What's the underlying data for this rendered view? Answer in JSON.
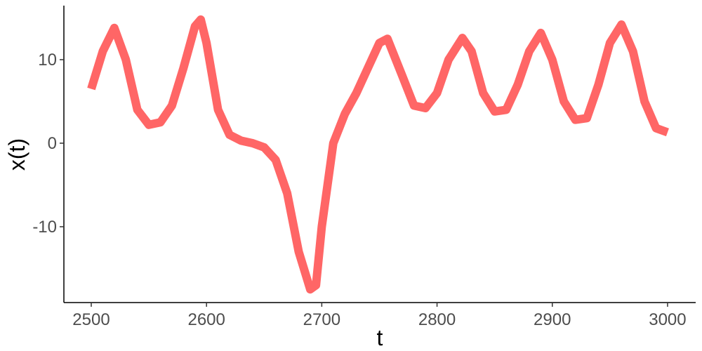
{
  "chart_data": {
    "type": "line",
    "x_label": "t",
    "y_label": "x(t)",
    "x": [
      2500,
      2510,
      2520,
      2530,
      2540,
      2550,
      2560,
      2570,
      2580,
      2590,
      2595,
      2600,
      2610,
      2620,
      2630,
      2640,
      2650,
      2660,
      2670,
      2680,
      2690,
      2695,
      2700,
      2710,
      2720,
      2730,
      2740,
      2750,
      2757,
      2770,
      2780,
      2790,
      2800,
      2810,
      2822,
      2830,
      2840,
      2850,
      2860,
      2870,
      2880,
      2890,
      2900,
      2910,
      2920,
      2930,
      2940,
      2950,
      2960,
      2970,
      2980,
      2990,
      3000
    ],
    "values": [
      6.5,
      11,
      13.8,
      10,
      4,
      2.2,
      2.5,
      4.5,
      9,
      14,
      14.8,
      12,
      4,
      1,
      0.3,
      0,
      -0.5,
      -2,
      -6,
      -13,
      -17.5,
      -17,
      -10,
      0,
      3.5,
      6,
      9,
      12,
      12.5,
      8,
      4.5,
      4.2,
      6,
      10,
      12.6,
      11,
      6,
      3.8,
      4,
      7,
      11,
      13.2,
      10,
      5,
      2.8,
      3,
      7,
      12,
      14.2,
      11,
      5,
      1.8,
      1.3
    ],
    "color": "#ff6666",
    "xlim": [
      2476.25,
      3024.4
    ],
    "ylim": [
      -19.08,
      16.47
    ],
    "xticks": [
      2500,
      2600,
      2700,
      2800,
      2900,
      3000
    ],
    "yticks": [
      -10,
      0,
      10
    ],
    "grid": false
  }
}
